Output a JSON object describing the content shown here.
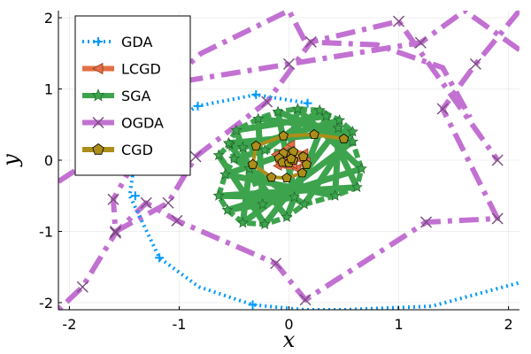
{
  "chart_data": {
    "type": "line",
    "xlabel": "x",
    "ylabel": "y",
    "xlim": [
      -2.1,
      2.1
    ],
    "ylim": [
      -2.1,
      2.1
    ],
    "xticks": [
      -2,
      -1,
      0,
      1,
      2
    ],
    "yticks": [
      -2,
      -1,
      0,
      1,
      2
    ],
    "xtick_labels": [
      "-2",
      "-1",
      "0",
      "1",
      "2"
    ],
    "ytick_labels": [
      "-2",
      "-1",
      "0",
      "1",
      "2"
    ],
    "grid": true,
    "legend_position": "top-left",
    "series": [
      {
        "name": "GDA",
        "color": "#009AFA",
        "style": "dotted",
        "marker": "plus",
        "x": [
          0.17,
          -0.3,
          -0.83,
          -1.18,
          -1.4,
          -1.45,
          -1.18,
          -0.82,
          -0.33,
          0.14,
          0.5,
          1.3,
          2.1
        ],
        "y": [
          0.8,
          0.92,
          0.76,
          0.45,
          0.05,
          -0.5,
          -1.37,
          -1.78,
          -2.03,
          -2.1,
          -2.1,
          -2.05,
          -1.72
        ],
        "marker_x": [
          0.17,
          -0.3,
          -0.83,
          -1.4,
          -1.18,
          -0.33
        ],
        "marker_y": [
          0.8,
          0.92,
          0.76,
          -0.5,
          -1.37,
          -2.03
        ]
      },
      {
        "name": "LCGD",
        "color": "#E26F46",
        "style": "solid",
        "marker": "left-triangle",
        "x": [
          0.02,
          -0.12,
          -0.1,
          0.07,
          0.16,
          0.14,
          0.02,
          -0.08,
          -0.06,
          0.04,
          0.09,
          0.02,
          -0.03
        ],
        "y": [
          0.22,
          0.08,
          -0.08,
          -0.12,
          -0.02,
          0.1,
          0.13,
          0.04,
          -0.05,
          -0.06,
          0.02,
          0.06,
          0.0
        ]
      },
      {
        "name": "SGA",
        "color": "#3DA44D",
        "style": "solid",
        "marker": "star",
        "marker_x": [
          -0.64,
          -0.54,
          -0.5,
          -0.58,
          -0.64,
          -0.56,
          -0.42,
          -0.22,
          -0.02,
          0.14,
          0.42,
          0.62,
          0.66,
          0.58,
          0.45,
          0.34,
          0.58,
          0.46,
          0.28,
          0.08,
          -0.1,
          -0.28,
          -0.48,
          -0.55,
          -0.42,
          -0.22,
          0.0,
          0.05,
          -0.24,
          -0.36
        ],
        "marker_y": [
          0.07,
          0.22,
          0.02,
          -0.2,
          -0.5,
          -0.7,
          -0.88,
          -0.9,
          -0.8,
          -0.62,
          -0.5,
          -0.38,
          -0.12,
          0.26,
          0.45,
          0.62,
          0.4,
          0.56,
          0.7,
          0.72,
          0.68,
          0.58,
          0.42,
          0.24,
          0.18,
          0.14,
          0.1,
          -0.52,
          -0.62,
          -0.12
        ]
      },
      {
        "name": "OGDA",
        "color": "#C271D2",
        "style": "dashdot",
        "marker": "cross",
        "x": [
          2.1,
          1.7,
          1.4,
          1.9,
          1.25,
          0.15,
          -0.12,
          -1.02,
          -1.3,
          -1.58,
          -1.88,
          -2.1
        ],
        "y": [
          2.1,
          1.35,
          0.72,
          -0.82,
          -0.87,
          -1.96,
          -1.45,
          -0.85,
          -0.6,
          -1.02,
          -1.78,
          -2.1
        ],
        "path2_x": [
          2.1,
          1.6,
          1.2,
          0.0,
          -1.0,
          -1.6,
          -1.58,
          -1.1,
          -0.85,
          -0.2,
          0.2,
          1.0,
          1.9
        ],
        "path2_y": [
          1.55,
          2.1,
          1.65,
          1.35,
          1.1,
          -0.55,
          -1.0,
          -0.6,
          0.05,
          0.82,
          1.66,
          1.95,
          0.0
        ],
        "path3_x": [
          -2.1,
          -1.7,
          -1.2,
          -0.8,
          0.0,
          0.15,
          0.8,
          1.4,
          1.65
        ],
        "path3_y": [
          -0.3,
          0.1,
          0.95,
          1.5,
          2.1,
          1.66,
          1.62,
          1.3,
          0.6
        ]
      },
      {
        "name": "CGD",
        "color": "#AC8E18",
        "style": "solid",
        "marker": "pentagon",
        "x": [
          0.5,
          0.23,
          -0.05,
          -0.3,
          -0.33,
          -0.16,
          -0.02,
          0.12,
          0.16,
          0.13,
          0.04,
          -0.05,
          -0.09,
          -0.06,
          0.0,
          0.04,
          0.02
        ],
        "y": [
          0.3,
          0.36,
          0.34,
          0.2,
          -0.06,
          -0.24,
          -0.25,
          -0.18,
          -0.06,
          0.05,
          0.12,
          0.1,
          0.03,
          -0.03,
          -0.04,
          0.0,
          0.02
        ]
      }
    ],
    "legend": [
      "GDA",
      "LCGD",
      "SGA",
      "OGDA",
      "CGD"
    ]
  }
}
